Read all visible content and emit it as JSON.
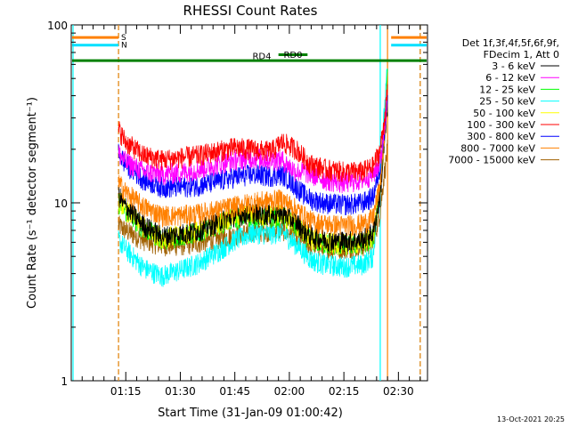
{
  "chart_data": {
    "type": "line",
    "title": "RHESSI Count Rates",
    "xlabel": "Start Time (31-Jan-09 01:00:42)",
    "ylabel": "Count Rate (s⁻¹ detector segment⁻¹)",
    "y_scale": "log",
    "ylim": [
      1,
      100
    ],
    "y_ticks": [
      1,
      10,
      100
    ],
    "y_tick_labels": [
      "1",
      "10",
      "100"
    ],
    "xlim": [
      "01:00",
      "02:38"
    ],
    "x_ticks": [
      "01:15",
      "01:30",
      "01:45",
      "02:00",
      "02:15",
      "02:30"
    ],
    "x_tick_minutes": [
      15,
      30,
      45,
      60,
      75,
      90
    ],
    "x_range_minutes": [
      0,
      98
    ],
    "legend_header": [
      "Det 1f,3f,4f,5f,6f,9f,",
      "FDecim 1, Att 0"
    ],
    "legend_position": "right",
    "timestamp": "13-Oct-2021 20:25",
    "x_minutes": [
      13,
      15,
      20,
      25,
      30,
      35,
      40,
      45,
      50,
      55,
      58,
      60,
      62,
      64,
      66,
      70,
      75,
      80,
      83,
      85,
      86,
      87
    ],
    "series": [
      {
        "name": "3 - 6 keV",
        "color": "#000000",
        "values": [
          11,
          9.5,
          7.5,
          6.5,
          6.7,
          7.0,
          7.8,
          8.5,
          8.8,
          8.6,
          8.8,
          8.2,
          7.8,
          7.0,
          6.5,
          6.2,
          6.1,
          6.2,
          6.8,
          11,
          20,
          35
        ]
      },
      {
        "name": "6 - 12 keV",
        "color": "#ff00ff",
        "values": [
          19,
          17,
          15,
          14.5,
          14.8,
          15.5,
          16.5,
          17.5,
          18,
          17.5,
          17.5,
          16,
          15,
          15,
          14.5,
          13.5,
          13,
          13.5,
          14.5,
          17,
          25,
          40
        ]
      },
      {
        "name": "12 - 25 keV",
        "color": "#00ff00",
        "values": [
          10,
          9,
          7.2,
          6.3,
          6.5,
          6.9,
          7.6,
          8.2,
          8.5,
          8.3,
          8.5,
          7.9,
          7.4,
          6.8,
          6.2,
          5.9,
          5.8,
          5.9,
          6.4,
          12,
          22,
          50
        ]
      },
      {
        "name": "25 - 50 keV",
        "color": "#00ffff",
        "values": [
          6.2,
          5.5,
          4.3,
          3.9,
          4.2,
          4.6,
          5.3,
          6.2,
          6.8,
          6.7,
          6.9,
          6.3,
          5.8,
          5.3,
          4.8,
          4.5,
          4.4,
          4.5,
          5.0,
          14,
          30,
          58
        ]
      },
      {
        "name": "50 - 100 keV",
        "color": "#ffff00",
        "values": [
          10.5,
          9.2,
          7.3,
          6.4,
          6.6,
          7.0,
          7.7,
          8.4,
          8.7,
          8.5,
          8.7,
          8.0,
          7.6,
          6.9,
          6.3,
          6.0,
          5.9,
          6.0,
          6.6,
          12,
          21,
          45
        ]
      },
      {
        "name": "100 - 300 keV",
        "color": "#ff0000",
        "values": [
          26,
          22,
          18.5,
          17.5,
          18,
          18.5,
          19.5,
          20.5,
          20,
          19.5,
          22,
          21,
          20,
          18,
          16.5,
          15.5,
          15,
          15,
          16,
          20,
          28,
          42
        ]
      },
      {
        "name": "300 - 800 keV",
        "color": "#0000ff",
        "values": [
          19,
          16.5,
          13.5,
          12.3,
          12.3,
          12.6,
          13.2,
          14,
          14.5,
          14.2,
          14.5,
          13.5,
          12.2,
          11.2,
          10.5,
          10,
          9.8,
          10,
          10.8,
          16,
          25,
          38
        ]
      },
      {
        "name": "800 - 7000 keV",
        "color": "#ff8000",
        "values": [
          13,
          11.5,
          9.5,
          8.5,
          8.5,
          8.7,
          9.1,
          9.6,
          10.1,
          10.3,
          10.5,
          9.8,
          9.2,
          8.5,
          7.9,
          7.6,
          7.5,
          7.6,
          8.2,
          13,
          22,
          40
        ]
      },
      {
        "name": "7000 - 15000 keV",
        "color": "#a06000",
        "values": [
          7.5,
          7.0,
          6.2,
          5.8,
          5.8,
          6.0,
          6.3,
          6.6,
          6.9,
          7.0,
          7.1,
          6.8,
          6.5,
          6.1,
          5.8,
          5.6,
          5.6,
          5.7,
          6.0,
          9,
          14,
          20
        ]
      }
    ],
    "flags": [
      {
        "label": "S",
        "color": "#ff8000",
        "y_value": 85
      },
      {
        "label": "N",
        "color": "#00e0ff",
        "y_value": 77
      },
      {
        "label": "RD0",
        "color": "#008000",
        "y_value": 63
      },
      {
        "label": "RD4",
        "color": "#008000",
        "y_value": 68
      }
    ],
    "vertical_markers": [
      {
        "x_minute": 13,
        "color": "#00e0ff",
        "style": "dashed"
      },
      {
        "x_minute": 13,
        "color": "#ff8000",
        "style": "dashed"
      },
      {
        "x_minute": 85,
        "color": "#00ffff",
        "style": "solid"
      },
      {
        "x_minute": 87,
        "color": "#ff8000",
        "style": "solid"
      },
      {
        "x_minute": 96,
        "color": "#00e0ff",
        "style": "dashed"
      },
      {
        "x_minute": 96,
        "color": "#ff8000",
        "style": "dashed"
      },
      {
        "x_minute": 0,
        "color": "#00ffff",
        "style": "solid"
      }
    ]
  }
}
